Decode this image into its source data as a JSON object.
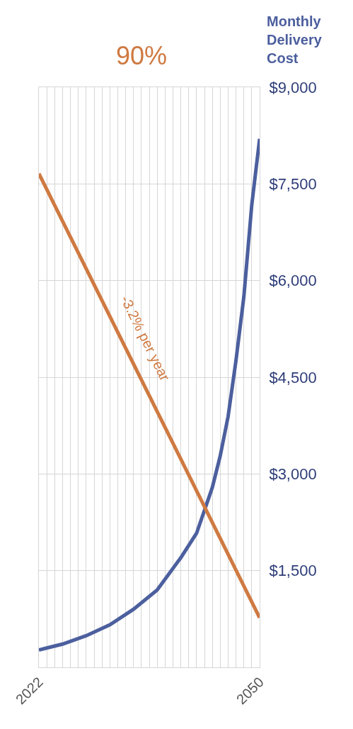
{
  "chart_data": {
    "type": "line",
    "title": "90%",
    "ylabel": "Monthly Delivery Cost",
    "series": [
      {
        "color": "#4c5f9e",
        "x": [
          2022,
          2023,
          2025,
          2028,
          2031,
          2034,
          2037,
          2040,
          2042,
          2044,
          2045,
          2046,
          2047,
          2048,
          2049,
          2050
        ],
        "values": [
          270,
          300,
          360,
          490,
          660,
          900,
          1200,
          1700,
          2080,
          2790,
          3280,
          3890,
          4760,
          5750,
          7170,
          8200
        ]
      },
      {
        "color": "#cf7a42",
        "x": [
          2022,
          2050
        ],
        "values": [
          7660,
          770
        ]
      }
    ],
    "annotations": [
      {
        "text": "-3.2% per year",
        "x": 2033,
        "y": 4953
      }
    ],
    "xlim": [
      2022,
      2050
    ],
    "xticks": [
      2022,
      {
        "value": 2023,
        "label": null
      },
      {
        "value": 2024,
        "label": null
      },
      {
        "value": 2025,
        "label": null
      },
      {
        "value": 2026,
        "label": null
      },
      {
        "value": 2027,
        "label": null
      },
      {
        "value": 2028,
        "label": null
      },
      {
        "value": 2029,
        "label": null
      },
      {
        "value": 2030,
        "label": null
      },
      {
        "value": 2031,
        "label": null
      },
      {
        "value": 2032,
        "label": null
      },
      {
        "value": 2033,
        "label": null
      },
      {
        "value": 2034,
        "label": null
      },
      {
        "value": 2035,
        "label": null
      },
      {
        "value": 2036,
        "label": null
      },
      {
        "value": 2037,
        "label": null
      },
      {
        "value": 2038,
        "label": null
      },
      {
        "value": 2039,
        "label": null
      },
      {
        "value": 2040,
        "label": null
      },
      {
        "value": 2041,
        "label": null
      },
      {
        "value": 2042,
        "label": null
      },
      {
        "value": 2043,
        "label": null
      },
      {
        "value": 2044,
        "label": null
      },
      {
        "value": 2045,
        "label": null
      },
      {
        "value": 2046,
        "label": null
      },
      {
        "value": 2047,
        "label": null
      },
      {
        "value": 2048,
        "label": null
      },
      {
        "value": 2049,
        "label": null
      },
      2050
    ],
    "ylim": [
      0,
      9000
    ],
    "yticks": [
      {
        "value": 1500,
        "label": "$1,500"
      },
      {
        "value": 3000,
        "label": "$3,000"
      },
      {
        "value": 4500,
        "label": "$4,500"
      },
      {
        "value": 6000,
        "label": "$6,000"
      },
      {
        "value": 7500,
        "label": "$7,500"
      },
      {
        "value": 9000,
        "label": "$9,000"
      }
    ],
    "grid": true,
    "marker": "none",
    "line_style": "solid"
  }
}
